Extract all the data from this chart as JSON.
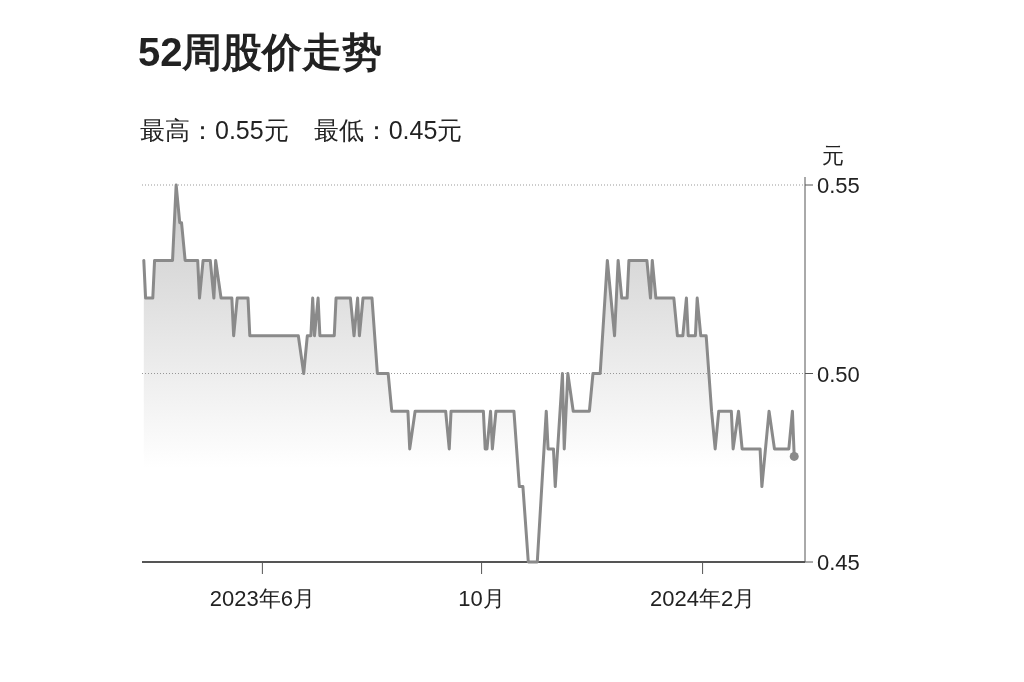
{
  "chart_data": {
    "type": "area",
    "title": "52周股价走势",
    "subtitle": "最高：0.55元　最低：0.45元",
    "ylabel": "元",
    "x": [
      "2023-03-27",
      "2023-03-28",
      "2023-04-01",
      "2023-04-02",
      "2023-04-12",
      "2023-04-14",
      "2023-04-16",
      "2023-04-17",
      "2023-04-19",
      "2023-04-26",
      "2023-04-27",
      "2023-04-29",
      "2023-05-03",
      "2023-05-05",
      "2023-05-06",
      "2023-05-09",
      "2023-05-15",
      "2023-05-16",
      "2023-05-18",
      "2023-05-24",
      "2023-05-25",
      "2023-06-21",
      "2023-06-24",
      "2023-06-26",
      "2023-06-28",
      "2023-06-29",
      "2023-06-30",
      "2023-07-02",
      "2023-07-03",
      "2023-07-11",
      "2023-07-12",
      "2023-07-20",
      "2023-07-22",
      "2023-07-24",
      "2023-07-25",
      "2023-07-27",
      "2023-08-01",
      "2023-08-04",
      "2023-08-10",
      "2023-08-12",
      "2023-08-21",
      "2023-08-22",
      "2023-08-25",
      "2023-09-11",
      "2023-09-13",
      "2023-09-14",
      "2023-10-02",
      "2023-10-03",
      "2023-10-04",
      "2023-10-06",
      "2023-10-07",
      "2023-10-09",
      "2023-10-19",
      "2023-10-22",
      "2023-10-24",
      "2023-10-27",
      "2023-11-01",
      "2023-11-06",
      "2023-11-07",
      "2023-11-10",
      "2023-11-11",
      "2023-11-15",
      "2023-11-16",
      "2023-11-18",
      "2023-11-21",
      "2023-11-30",
      "2023-12-02",
      "2023-12-06",
      "2023-12-10",
      "2023-12-14",
      "2023-12-16",
      "2023-12-18",
      "2023-12-21",
      "2023-12-22",
      "2024-01-01",
      "2024-01-03",
      "2024-01-04",
      "2024-01-06",
      "2024-01-16",
      "2024-01-18",
      "2024-01-21",
      "2024-01-23",
      "2024-01-24",
      "2024-01-28",
      "2024-01-29",
      "2024-01-31",
      "2024-02-03",
      "2024-02-06",
      "2024-02-08",
      "2024-02-10",
      "2024-02-17",
      "2024-02-18",
      "2024-02-21",
      "2024-02-23",
      "2024-03-04",
      "2024-03-05",
      "2024-03-07",
      "2024-03-09",
      "2024-03-12",
      "2024-03-20",
      "2024-03-22",
      "2024-03-23"
    ],
    "series": [
      {
        "color": "#8a8a8a",
        "values": [
          0.53,
          0.52,
          0.52,
          0.53,
          0.53,
          0.55,
          0.54,
          0.54,
          0.53,
          0.53,
          0.52,
          0.53,
          0.53,
          0.52,
          0.53,
          0.52,
          0.52,
          0.51,
          0.52,
          0.52,
          0.51,
          0.51,
          0.5,
          0.51,
          0.51,
          0.52,
          0.51,
          0.52,
          0.51,
          0.51,
          0.52,
          0.52,
          0.51,
          0.52,
          0.51,
          0.52,
          0.52,
          0.5,
          0.5,
          0.49,
          0.49,
          0.48,
          0.49,
          0.49,
          0.48,
          0.49,
          0.49,
          0.48,
          0.48,
          0.49,
          0.48,
          0.49,
          0.49,
          0.47,
          0.47,
          0.45,
          0.45,
          0.49,
          0.48,
          0.48,
          0.47,
          0.5,
          0.48,
          0.5,
          0.49,
          0.49,
          0.5,
          0.5,
          0.53,
          0.51,
          0.53,
          0.52,
          0.52,
          0.53,
          0.53,
          0.52,
          0.53,
          0.52,
          0.52,
          0.51,
          0.51,
          0.52,
          0.51,
          0.51,
          0.52,
          0.51,
          0.51,
          0.49,
          0.48,
          0.49,
          0.49,
          0.48,
          0.49,
          0.48,
          0.48,
          0.47,
          0.48,
          0.49,
          0.48,
          0.48,
          0.49,
          0.478
        ]
      },
      {
        "type": "scatter",
        "color": "#8a8a8a",
        "x": [
          "2024-03-23"
        ],
        "values": [
          0.478
        ]
      }
    ],
    "xlim": [
      "2023-03-26",
      "2024-03-29"
    ],
    "xticks": [
      {
        "value": "2023-06",
        "label": "2023年6月"
      },
      {
        "value": "2023-10",
        "label": "10月"
      },
      {
        "value": "2024-02",
        "label": "2024年2月"
      }
    ],
    "ylim": [
      0.45,
      0.55
    ],
    "yticks": [
      0.45,
      {
        "value": 0.5,
        "label": "0.50"
      },
      0.55
    ],
    "grid": "y"
  }
}
